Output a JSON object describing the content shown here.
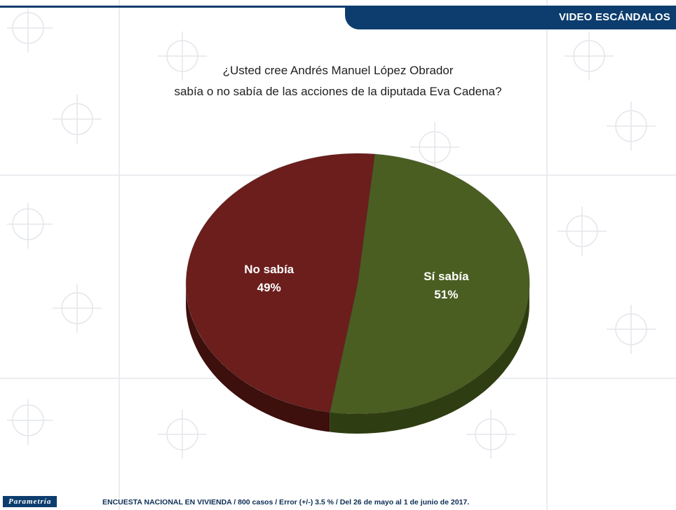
{
  "header": {
    "title": "VIDEO ESCÁNDALOS"
  },
  "question": {
    "line1": "¿Usted cree Andrés Manuel López Obrador",
    "line2": "sabía o no sabía de las acciones de la diputada Eva Cadena?"
  },
  "chart_data": {
    "type": "pie",
    "title": "¿Usted cree Andrés Manuel López Obrador sabía o no sabía de las acciones de la diputada Eva Cadena?",
    "slices": [
      {
        "label": "Sí sabía",
        "value": 51,
        "display": "51%",
        "color": "#4b5e22",
        "side_color": "#2f3d12"
      },
      {
        "label": "No sabía",
        "value": 49,
        "display": "49%",
        "color": "#6b1e1c",
        "side_color": "#3d0f0d"
      }
    ],
    "style": "3d-pie",
    "legend": "none"
  },
  "footer": {
    "brand": "Parametría",
    "note": "ENCUESTA NACIONAL EN VIVIENDA / 800 casos / Error (+/-) 3.5 % / Del 26 de mayo al 1 de junio de 2017."
  },
  "colors": {
    "brand_blue": "#0d3d6e"
  }
}
